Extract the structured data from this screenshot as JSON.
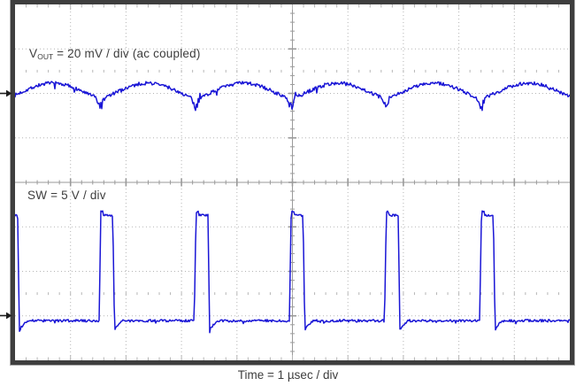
{
  "chart_data": {
    "type": "line",
    "title": "",
    "xlabel": "Time = 1 µsec / div",
    "x_divisions": 10,
    "y_divisions": 8,
    "timebase_us_per_div": 1,
    "grid": "dotted division grid with solid center crosshair, minor ticks every 1/5 division, 0%/100% tick rows at ±2.5 div",
    "legend_position": "labels inside plot area",
    "trace_color": "#1a16d6",
    "grid_color": "#b5b5b5",
    "axis_color": "#9a9a9a",
    "frame_color": "#3e3e3e",
    "text_color": "#3d3d3d",
    "marker_color": "#1c1c1c",
    "series": [
      {
        "name": "VOUT",
        "label": {
          "main": "V",
          "sub": "OUT",
          "rest": " = 20 mV / div (ac coupled)"
        },
        "volts_per_div": 0.02,
        "coupling": "ac coupled",
        "ref_divs_from_top": 2,
        "waveform": "ripple",
        "period_us": 1.715,
        "sync_offset_us": -0.2,
        "peak_to_peak_mV": 10,
        "levels_mV": {
          "pre_notch": -1.7,
          "notch": -5.4,
          "notch_spike": -8,
          "recovery": -1.2,
          "peak": 4.6
        },
        "noise_mV": 0.8
      },
      {
        "name": "SW",
        "label": {
          "main": "SW = 5 V / div"
        },
        "volts_per_div": 5,
        "ref_divs_from_top": 7,
        "waveform": "pulse",
        "period_us": 1.715,
        "pulse_width_us": 0.215,
        "first_edge_us": -0.2,
        "duty_cycle_pct": 12.5,
        "frequency_kHz": 583,
        "levels_V": {
          "high": 11.3,
          "low": -0.55,
          "undershoot": -1.9,
          "overshoot_bump": 0.4
        },
        "noise_V": 0.14
      }
    ]
  }
}
